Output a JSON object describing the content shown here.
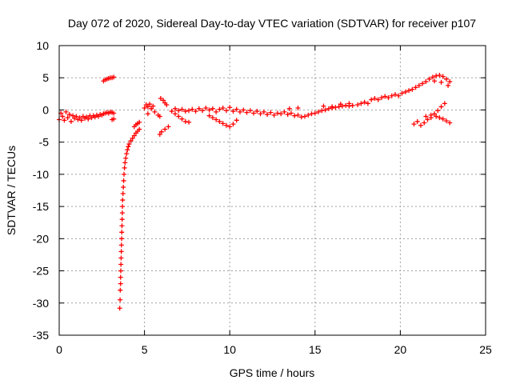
{
  "chart_data": {
    "type": "scatter",
    "title": "Day 072 of 2020, Sidereal Day-to-day VTEC variation (SDTVAR) for receiver p107",
    "xlabel": "GPS time / hours",
    "ylabel": "SDTVAR / TECUs",
    "xlim": [
      0,
      25
    ],
    "ylim": [
      -35,
      10
    ],
    "xticks": [
      "0",
      "5",
      "10",
      "15",
      "20",
      "25"
    ],
    "yticks": [
      "10",
      "5",
      "0",
      "-5",
      "-10",
      "-15",
      "-20",
      "-25",
      "-30",
      "-35"
    ],
    "grid": true,
    "marker": "+",
    "color": "#ff0000",
    "series": [
      {
        "name": "SDTVAR",
        "points": [
          [
            0.0,
            -1.5
          ],
          [
            0.1,
            -0.5
          ],
          [
            0.2,
            -1.0
          ],
          [
            0.3,
            -1.6
          ],
          [
            0.4,
            -0.3
          ],
          [
            0.5,
            -1.2
          ],
          [
            0.6,
            -0.7
          ],
          [
            0.7,
            -1.8
          ],
          [
            0.8,
            -0.9
          ],
          [
            0.9,
            -1.3
          ],
          [
            1.0,
            -1.0
          ],
          [
            1.1,
            -1.5
          ],
          [
            1.2,
            -1.2
          ],
          [
            1.3,
            -1.6
          ],
          [
            1.4,
            -1.0
          ],
          [
            1.5,
            -1.3
          ],
          [
            1.6,
            -1.1
          ],
          [
            1.7,
            -1.4
          ],
          [
            1.8,
            -0.9
          ],
          [
            1.9,
            -1.2
          ],
          [
            2.0,
            -0.9
          ],
          [
            2.1,
            -1.1
          ],
          [
            2.2,
            -0.8
          ],
          [
            2.3,
            -1.0
          ],
          [
            2.4,
            -0.7
          ],
          [
            2.5,
            -0.8
          ],
          [
            2.6,
            -0.6
          ],
          [
            2.7,
            -0.5
          ],
          [
            2.8,
            -0.4
          ],
          [
            2.9,
            -0.5
          ],
          [
            3.0,
            -0.3
          ],
          [
            3.1,
            -0.4
          ],
          [
            3.2,
            -0.5
          ],
          [
            3.2,
            -1.4
          ],
          [
            3.1,
            -1.5
          ],
          [
            2.6,
            4.5
          ],
          [
            2.7,
            4.7
          ],
          [
            2.8,
            4.8
          ],
          [
            2.9,
            4.9
          ],
          [
            3.0,
            5.0
          ],
          [
            3.1,
            5.0
          ],
          [
            3.2,
            5.1
          ],
          [
            3.55,
            -30.8
          ],
          [
            3.57,
            -29.5
          ],
          [
            3.58,
            -28.0
          ],
          [
            3.6,
            -27.0
          ],
          [
            3.6,
            -26.0
          ],
          [
            3.61,
            -25.0
          ],
          [
            3.62,
            -24.0
          ],
          [
            3.63,
            -23.0
          ],
          [
            3.64,
            -22.0
          ],
          [
            3.65,
            -21.0
          ],
          [
            3.66,
            -20.0
          ],
          [
            3.67,
            -19.0
          ],
          [
            3.68,
            -18.0
          ],
          [
            3.69,
            -17.0
          ],
          [
            3.7,
            -16.0
          ],
          [
            3.71,
            -15.0
          ],
          [
            3.72,
            -14.0
          ],
          [
            3.74,
            -13.0
          ],
          [
            3.76,
            -12.0
          ],
          [
            3.78,
            -11.0
          ],
          [
            3.8,
            -10.0
          ],
          [
            3.83,
            -9.0
          ],
          [
            3.86,
            -8.2
          ],
          [
            3.9,
            -7.5
          ],
          [
            3.95,
            -6.8
          ],
          [
            4.0,
            -6.2
          ],
          [
            4.05,
            -5.7
          ],
          [
            4.1,
            -5.3
          ],
          [
            4.2,
            -4.8
          ],
          [
            4.3,
            -4.4
          ],
          [
            4.4,
            -4.0
          ],
          [
            4.5,
            -3.6
          ],
          [
            4.6,
            -3.3
          ],
          [
            4.7,
            -3.0
          ],
          [
            4.4,
            -2.6
          ],
          [
            4.5,
            -2.3
          ],
          [
            4.6,
            -2.1
          ],
          [
            4.7,
            -1.9
          ],
          [
            5.0,
            0.3
          ],
          [
            5.1,
            0.8
          ],
          [
            5.2,
            0.5
          ],
          [
            5.3,
            0.9
          ],
          [
            5.4,
            0.2
          ],
          [
            5.5,
            0.6
          ],
          [
            5.2,
            -0.6
          ],
          [
            5.6,
            -0.3
          ],
          [
            5.8,
            -0.8
          ],
          [
            5.9,
            -1.0
          ],
          [
            5.95,
            1.8
          ],
          [
            6.1,
            1.5
          ],
          [
            6.2,
            1.1
          ],
          [
            6.3,
            0.8
          ],
          [
            5.9,
            -3.8
          ],
          [
            6.0,
            -3.4
          ],
          [
            6.2,
            -3.0
          ],
          [
            6.4,
            -2.6
          ],
          [
            6.6,
            -0.2
          ],
          [
            6.8,
            -0.6
          ],
          [
            7.0,
            -1.0
          ],
          [
            7.2,
            -1.4
          ],
          [
            7.4,
            -1.8
          ],
          [
            7.6,
            -1.9
          ],
          [
            6.8,
            0.2
          ],
          [
            7.0,
            -0.1
          ],
          [
            7.2,
            0.1
          ],
          [
            7.4,
            -0.2
          ],
          [
            7.6,
            -0.1
          ],
          [
            7.8,
            0.1
          ],
          [
            8.0,
            -0.2
          ],
          [
            8.2,
            0.2
          ],
          [
            8.4,
            -0.1
          ],
          [
            8.6,
            0.3
          ],
          [
            8.8,
            0.0
          ],
          [
            9.0,
            0.2
          ],
          [
            9.2,
            -0.3
          ],
          [
            9.4,
            0.1
          ],
          [
            8.8,
            -0.9
          ],
          [
            9.0,
            -1.2
          ],
          [
            9.2,
            -1.5
          ],
          [
            9.4,
            -1.8
          ],
          [
            9.6,
            -2.1
          ],
          [
            9.8,
            -2.4
          ],
          [
            10.0,
            -2.6
          ],
          [
            10.2,
            -2.2
          ],
          [
            10.4,
            -1.6
          ],
          [
            9.6,
            0.3
          ],
          [
            9.8,
            -0.1
          ],
          [
            10.0,
            0.4
          ],
          [
            10.2,
            -0.2
          ],
          [
            10.4,
            0.1
          ],
          [
            10.6,
            -0.3
          ],
          [
            10.8,
            0.0
          ],
          [
            11.0,
            -0.4
          ],
          [
            11.2,
            -0.1
          ],
          [
            11.4,
            -0.5
          ],
          [
            11.6,
            -0.2
          ],
          [
            11.8,
            -0.6
          ],
          [
            12.0,
            -0.3
          ],
          [
            12.2,
            -0.7
          ],
          [
            12.4,
            -0.4
          ],
          [
            12.6,
            -0.8
          ],
          [
            12.8,
            -0.5
          ],
          [
            13.0,
            -0.6
          ],
          [
            13.2,
            -0.3
          ],
          [
            13.4,
            -0.7
          ],
          [
            13.6,
            -0.5
          ],
          [
            13.8,
            -0.9
          ],
          [
            14.0,
            -0.8
          ],
          [
            14.2,
            -1.1
          ],
          [
            14.4,
            -1.0
          ],
          [
            14.6,
            -0.8
          ],
          [
            14.8,
            -0.6
          ],
          [
            13.5,
            0.2
          ],
          [
            14.0,
            0.3
          ],
          [
            15.0,
            -0.5
          ],
          [
            15.2,
            -0.3
          ],
          [
            15.4,
            -0.1
          ],
          [
            15.6,
            0.0
          ],
          [
            15.8,
            0.2
          ],
          [
            16.0,
            0.3
          ],
          [
            16.2,
            0.4
          ],
          [
            16.4,
            0.5
          ],
          [
            16.6,
            0.6
          ],
          [
            16.8,
            0.7
          ],
          [
            17.0,
            0.6
          ],
          [
            15.5,
            0.6
          ],
          [
            16.0,
            0.5
          ],
          [
            16.5,
            0.9
          ],
          [
            17.0,
            1.0
          ],
          [
            17.2,
            0.7
          ],
          [
            17.5,
            0.8
          ],
          [
            17.7,
            1.0
          ],
          [
            17.9,
            1.2
          ],
          [
            18.1,
            1.0
          ],
          [
            18.3,
            1.6
          ],
          [
            18.5,
            1.8
          ],
          [
            18.7,
            1.6
          ],
          [
            18.9,
            1.9
          ],
          [
            19.1,
            2.1
          ],
          [
            19.3,
            1.9
          ],
          [
            19.5,
            2.2
          ],
          [
            19.7,
            2.4
          ],
          [
            19.9,
            2.2
          ],
          [
            20.1,
            2.6
          ],
          [
            20.3,
            2.8
          ],
          [
            20.5,
            3.0
          ],
          [
            20.7,
            3.2
          ],
          [
            20.9,
            3.5
          ],
          [
            21.1,
            3.8
          ],
          [
            21.3,
            4.1
          ],
          [
            21.5,
            4.4
          ],
          [
            21.7,
            4.8
          ],
          [
            21.9,
            5.1
          ],
          [
            22.1,
            5.3
          ],
          [
            22.3,
            5.4
          ],
          [
            22.5,
            5.2
          ],
          [
            22.7,
            4.8
          ],
          [
            22.9,
            4.4
          ],
          [
            22.0,
            4.5
          ],
          [
            22.4,
            4.3
          ],
          [
            22.8,
            3.8
          ],
          [
            20.8,
            -2.2
          ],
          [
            21.0,
            -1.8
          ],
          [
            21.2,
            -2.4
          ],
          [
            21.4,
            -2.0
          ],
          [
            21.6,
            -1.5
          ],
          [
            21.8,
            -1.2
          ],
          [
            22.0,
            -0.6
          ],
          [
            22.2,
            -0.1
          ],
          [
            22.4,
            0.5
          ],
          [
            22.6,
            1.0
          ],
          [
            22.1,
            -1.0
          ],
          [
            22.3,
            -1.2
          ],
          [
            22.5,
            -1.4
          ],
          [
            22.7,
            -1.7
          ],
          [
            22.9,
            -2.0
          ],
          [
            21.5,
            -1.0
          ],
          [
            21.8,
            -0.8
          ]
        ]
      }
    ]
  }
}
